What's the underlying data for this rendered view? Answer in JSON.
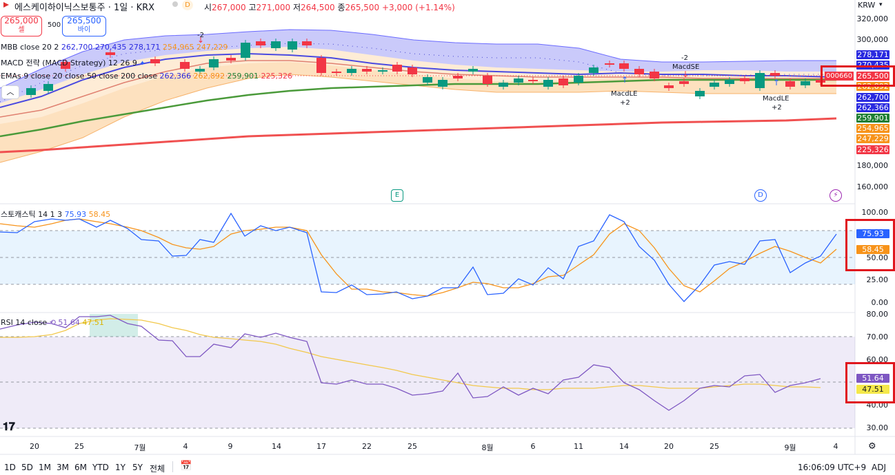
{
  "header": {
    "symbol_name": "에스케이하이닉스보통주 · 1일 · KRX",
    "d_badge": "D",
    "open_label": "시",
    "open": "267,000",
    "high_label": "고",
    "high": "271,000",
    "low_label": "저",
    "low": "264,500",
    "close_label": "종",
    "close": "265,500",
    "change": "+3,000 (+1.14%)",
    "currency": "KRW"
  },
  "trade": {
    "sell_price": "265,000",
    "sell_label": "셀",
    "spread": "500",
    "buy_price": "265,500",
    "buy_label": "바이"
  },
  "legends": {
    "mbb": {
      "name": "MBB close 20 2",
      "v1": "262,700",
      "v2": "270,435",
      "v3": "278,171"
    },
    "mbb_right": {
      "v1": "254,965",
      "v2": "247,229"
    },
    "macd": {
      "name": "MACD 전략 (MACD Strategy) 12 26 9"
    },
    "emas": {
      "name": "EMAs 9 close 20 close 50 close 200 close",
      "v1": "262,366",
      "v2": "262,892",
      "v3": "259,901",
      "v4": "225,326"
    },
    "stoch": {
      "name": "스토캐스틱 14 1 3",
      "k": "75.93",
      "d": "58.45"
    },
    "rsi": {
      "name": "RSI 14 close",
      "v": "51.64",
      "ma": "47.51"
    }
  },
  "price_axis": [
    "320,000",
    "300,000",
    "180,000",
    "160,000"
  ],
  "price_badges": [
    {
      "text": "278,171",
      "color": "#2a2ae0"
    },
    {
      "text": "270,435",
      "color": "#2a2ae0"
    },
    {
      "text": "265,500",
      "color": "#f23645"
    },
    {
      "text": "262,892",
      "color": "#f7931a"
    },
    {
      "text": "262,700",
      "color": "#2a2ae0"
    },
    {
      "text": "262,366",
      "color": "#2a2ae0"
    },
    {
      "text": "259,901",
      "color": "#1e7e34"
    },
    {
      "text": "254,965",
      "color": "#f7931a"
    },
    {
      "text": "247,229",
      "color": "#f7931a"
    },
    {
      "text": "225,326",
      "color": "#f23645"
    }
  ],
  "countdown": "000660",
  "stoch_axis": [
    "100.00",
    "75.00",
    "50.00",
    "25.00",
    "0.00"
  ],
  "stoch_badges": {
    "k": "75.93",
    "d": "58.45"
  },
  "rsi_axis": [
    "80.00",
    "70.00",
    "60.00",
    "50.00",
    "40.00",
    "30.00"
  ],
  "rsi_badges": {
    "v": "51.64",
    "ma": "47.51"
  },
  "signals": [
    {
      "text": "-2",
      "sub": "MacdSE"
    },
    {
      "text": "-2",
      "sub": "MacdSE"
    },
    {
      "text": "MacdLE",
      "sub": "+2"
    },
    {
      "text": "MacdLE",
      "sub": "+2"
    }
  ],
  "events": {
    "e": "E",
    "d": "D"
  },
  "x_axis": [
    "20",
    "25",
    "7월",
    "4",
    "9",
    "14",
    "17",
    "22",
    "25",
    "8월",
    "6",
    "11",
    "14",
    "20",
    "25",
    "9월",
    "4"
  ],
  "timeframes": [
    "1D",
    "5D",
    "1M",
    "3M",
    "6M",
    "YTD",
    "1Y",
    "5Y",
    "전체"
  ],
  "clock": "16:06:09 UTC+9",
  "adj": "ADJ",
  "colors": {
    "up": "#f23645",
    "down": "#089981",
    "blue": "#2a2ae0",
    "orange": "#f7931a",
    "green": "#1e7e34",
    "red": "#f23645",
    "highlight": "#e0161d"
  }
}
